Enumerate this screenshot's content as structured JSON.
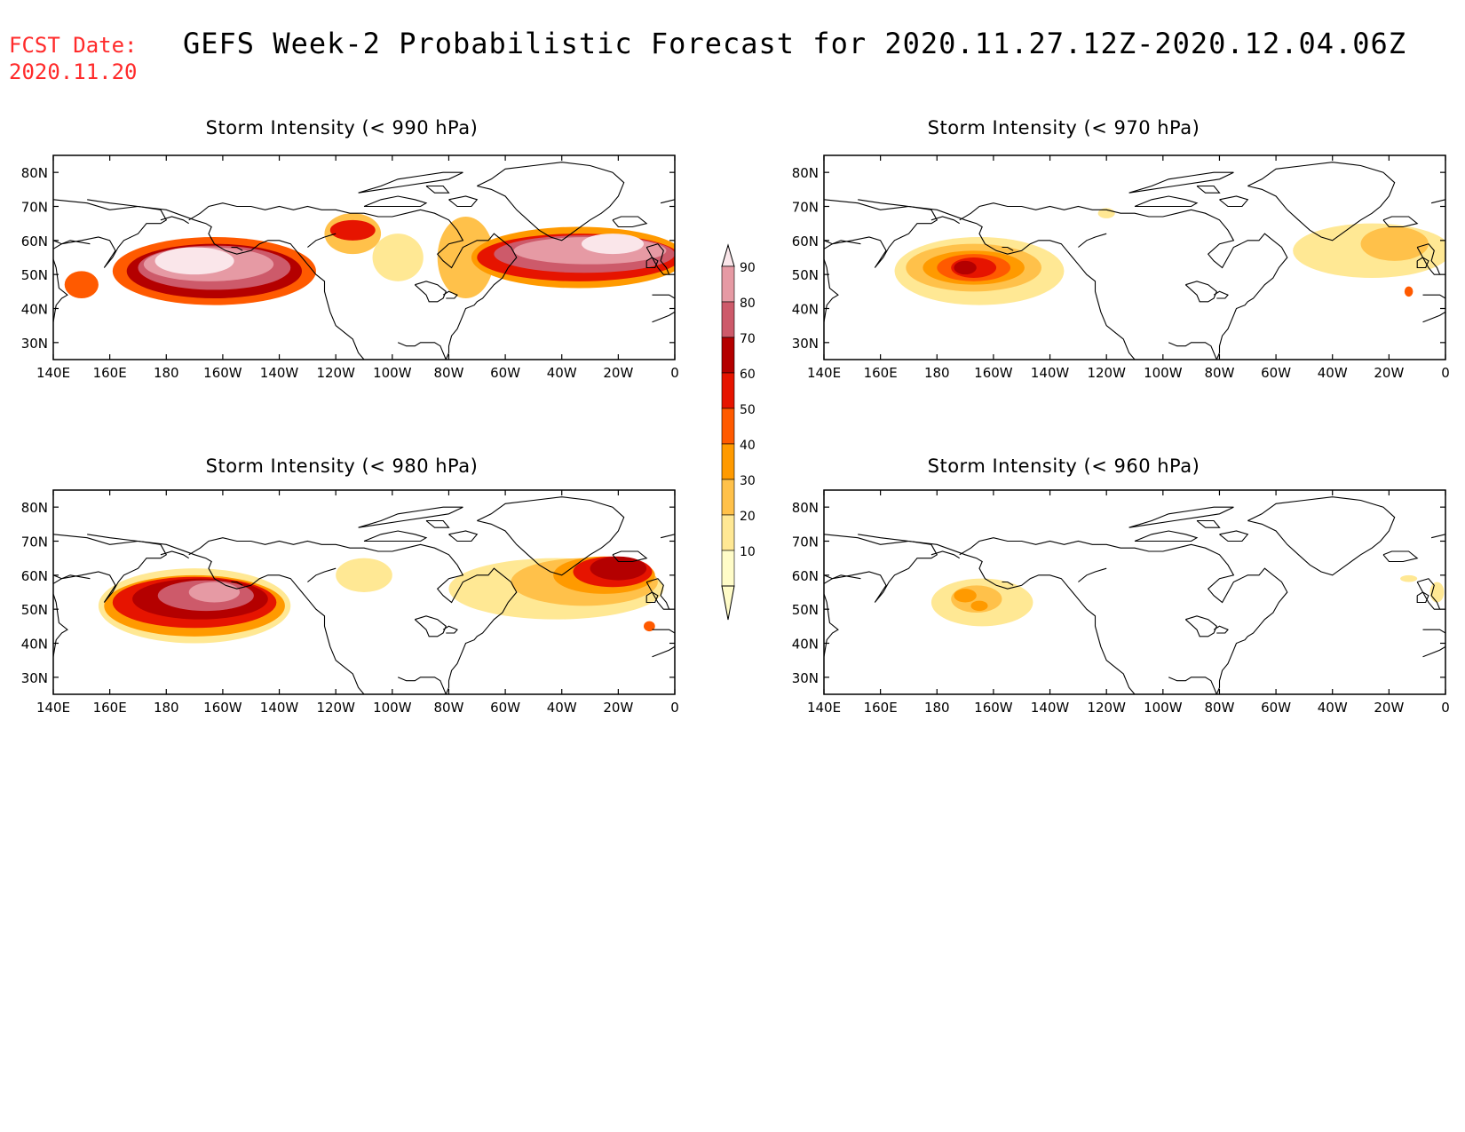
{
  "header": {
    "fcst_label": "FCST Date:",
    "fcst_date": "2020.11.20",
    "title": "GEFS Week-2 Probabilistic Forecast for 2020.11.27.12Z-2020.12.04.06Z"
  },
  "axes": {
    "lat_labels": [
      "80N",
      "70N",
      "60N",
      "50N",
      "40N",
      "30N"
    ],
    "lat_values": [
      80,
      70,
      60,
      50,
      40,
      30
    ],
    "lon_labels": [
      "140E",
      "160E",
      "180",
      "160W",
      "140W",
      "120W",
      "100W",
      "80W",
      "60W",
      "40W",
      "20W",
      "0"
    ],
    "lon_values": [
      140,
      160,
      180,
      200,
      220,
      240,
      260,
      280,
      300,
      320,
      340,
      360
    ],
    "lon_range": [
      140,
      360
    ],
    "lat_range": [
      25,
      85
    ]
  },
  "colorbar": {
    "labels": [
      "10",
      "20",
      "30",
      "40",
      "50",
      "60",
      "70",
      "80",
      "90"
    ],
    "colors": [
      "#fffcc8",
      "#ffe894",
      "#ffc14a",
      "#ff9a00",
      "#ff5a00",
      "#e61400",
      "#b40000",
      "#cd5a6a",
      "#e69aa4",
      "#fae6ea"
    ]
  },
  "panels": [
    {
      "id": "p990",
      "title": "Storm Intensity (< 990 hPa)",
      "blobs": [
        {
          "lon": 197,
          "lat": 51,
          "rx": 36,
          "ry": 10,
          "level": 4
        },
        {
          "lon": 197,
          "lat": 51,
          "rx": 31,
          "ry": 8,
          "level": 6
        },
        {
          "lon": 197,
          "lat": 52,
          "rx": 27,
          "ry": 6.5,
          "level": 7
        },
        {
          "lon": 195,
          "lat": 53,
          "rx": 23,
          "ry": 5,
          "level": 8
        },
        {
          "lon": 190,
          "lat": 54,
          "rx": 14,
          "ry": 4,
          "level": 9
        },
        {
          "lon": 150,
          "lat": 47,
          "rx": 6,
          "ry": 4,
          "level": 4
        },
        {
          "lon": 246,
          "lat": 62,
          "rx": 10,
          "ry": 6,
          "level": 2
        },
        {
          "lon": 246,
          "lat": 63,
          "rx": 8,
          "ry": 3,
          "level": 5
        },
        {
          "lon": 262,
          "lat": 55,
          "rx": 9,
          "ry": 7,
          "level": 1
        },
        {
          "lon": 286,
          "lat": 55,
          "rx": 10,
          "ry": 12,
          "level": 2
        },
        {
          "lon": 326,
          "lat": 55,
          "rx": 38,
          "ry": 9,
          "level": 3
        },
        {
          "lon": 326,
          "lat": 55,
          "rx": 36,
          "ry": 7,
          "level": 5
        },
        {
          "lon": 328,
          "lat": 56,
          "rx": 32,
          "ry": 5.5,
          "level": 7
        },
        {
          "lon": 330,
          "lat": 57,
          "rx": 27,
          "ry": 4,
          "level": 8
        },
        {
          "lon": 338,
          "lat": 59,
          "rx": 11,
          "ry": 3,
          "level": 9
        }
      ]
    },
    {
      "id": "p970",
      "title": "Storm Intensity (< 970 hPa)",
      "blobs": [
        {
          "lon": 195,
          "lat": 51,
          "rx": 30,
          "ry": 10,
          "level": 1
        },
        {
          "lon": 193,
          "lat": 52,
          "rx": 24,
          "ry": 7,
          "level": 2
        },
        {
          "lon": 193,
          "lat": 52,
          "rx": 18,
          "ry": 5,
          "level": 3
        },
        {
          "lon": 193,
          "lat": 52,
          "rx": 13,
          "ry": 4,
          "level": 4
        },
        {
          "lon": 193,
          "lat": 52,
          "rx": 8,
          "ry": 3,
          "level": 5
        },
        {
          "lon": 190,
          "lat": 52,
          "rx": 4,
          "ry": 2,
          "level": 6
        },
        {
          "lon": 240,
          "lat": 68,
          "rx": 3,
          "ry": 1.5,
          "level": 1
        },
        {
          "lon": 334,
          "lat": 57,
          "rx": 28,
          "ry": 8,
          "level": 1
        },
        {
          "lon": 342,
          "lat": 59,
          "rx": 12,
          "ry": 5,
          "level": 2
        },
        {
          "lon": 347,
          "lat": 45,
          "rx": 1.5,
          "ry": 1.5,
          "level": 4
        }
      ]
    },
    {
      "id": "p980",
      "title": "Storm Intensity (< 980 hPa)",
      "blobs": [
        {
          "lon": 190,
          "lat": 51,
          "rx": 34,
          "ry": 11,
          "level": 1
        },
        {
          "lon": 190,
          "lat": 51,
          "rx": 32,
          "ry": 9,
          "level": 3
        },
        {
          "lon": 190,
          "lat": 52,
          "rx": 29,
          "ry": 7.5,
          "level": 5
        },
        {
          "lon": 192,
          "lat": 53,
          "rx": 24,
          "ry": 6,
          "level": 6
        },
        {
          "lon": 194,
          "lat": 54,
          "rx": 17,
          "ry": 4.5,
          "level": 7
        },
        {
          "lon": 197,
          "lat": 55,
          "rx": 9,
          "ry": 3,
          "level": 8
        },
        {
          "lon": 250,
          "lat": 60,
          "rx": 10,
          "ry": 5,
          "level": 1
        },
        {
          "lon": 318,
          "lat": 56,
          "rx": 38,
          "ry": 9,
          "level": 1
        },
        {
          "lon": 328,
          "lat": 58,
          "rx": 26,
          "ry": 7,
          "level": 2
        },
        {
          "lon": 335,
          "lat": 60,
          "rx": 18,
          "ry": 5.5,
          "level": 3
        },
        {
          "lon": 338,
          "lat": 61,
          "rx": 14,
          "ry": 4.5,
          "level": 5
        },
        {
          "lon": 340,
          "lat": 62,
          "rx": 10,
          "ry": 3.5,
          "level": 6
        },
        {
          "lon": 351,
          "lat": 45,
          "rx": 2,
          "ry": 1.5,
          "level": 4
        }
      ]
    },
    {
      "id": "p960",
      "title": "Storm Intensity (< 960 hPa)",
      "blobs": [
        {
          "lon": 196,
          "lat": 52,
          "rx": 18,
          "ry": 7,
          "level": 1
        },
        {
          "lon": 194,
          "lat": 53,
          "rx": 9,
          "ry": 4,
          "level": 2
        },
        {
          "lon": 190,
          "lat": 54,
          "rx": 4,
          "ry": 2,
          "level": 3
        },
        {
          "lon": 195,
          "lat": 51,
          "rx": 3,
          "ry": 1.5,
          "level": 3
        },
        {
          "lon": 347,
          "lat": 59,
          "rx": 3,
          "ry": 1,
          "level": 1
        },
        {
          "lon": 357,
          "lat": 55,
          "rx": 2.5,
          "ry": 3,
          "level": 1
        }
      ]
    }
  ]
}
